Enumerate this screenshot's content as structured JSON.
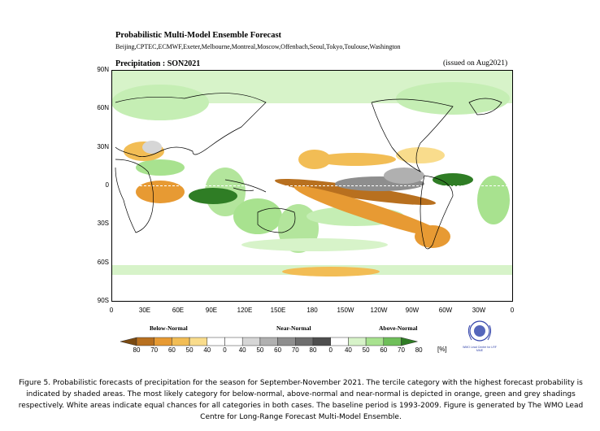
{
  "header": {
    "title": "Probabilistic Multi-Model Ensemble Forecast",
    "centres": "Beijing,CPTEC,ECMWF,Exeter,Melbourne,Montreal,Moscow,Offenbach,Seoul,Tokyo,Toulouse,Washington",
    "variable": "Precipitation : SON2021",
    "issued": "(issued on Aug2021)"
  },
  "map": {
    "lat_labels": [
      "90N",
      "60N",
      "30N",
      "0",
      "30S",
      "60S",
      "90S"
    ],
    "lon_labels": [
      "0",
      "30E",
      "60E",
      "90E",
      "120E",
      "150E",
      "180",
      "150W",
      "120W",
      "90W",
      "60W",
      "30W",
      "0"
    ]
  },
  "legend": {
    "categories": [
      "Below-Normal",
      "Near-Normal",
      "Above-Normal"
    ],
    "tick_labels": [
      "80",
      "70",
      "60",
      "50",
      "40",
      "0",
      "40",
      "50",
      "60",
      "70",
      "80",
      "0",
      "40",
      "50",
      "60",
      "70",
      "80"
    ],
    "unit": "[%]",
    "colors": {
      "below": [
        "#7a4a12",
        "#b8701f",
        "#e79a33",
        "#f2bd55",
        "#f9dc8c"
      ],
      "near": [
        "#ffffff",
        "#ffffff",
        "#d6d6d6",
        "#b0b0b0",
        "#8e8e8e",
        "#6e6e6e",
        "#4e4e4e"
      ],
      "above": [
        "#ffffff",
        "#d7f3c9",
        "#a8e28f",
        "#6fbf5a",
        "#2f7d25",
        "#17501a"
      ]
    },
    "logo_text": "WMO Lead Centre for LRF MME"
  },
  "caption": "Figure 5. Probabilistic forecasts of precipitation for the season for September-November 2021. The tercile category with the highest forecast probability is indicated by shaded areas. The most likely category for below-normal, above-normal and near-normal is depicted in orange, green and grey shadings respectively. White areas indicate equal chances for all categories in both cases. The baseline period is 1993-2009. Figure is generated by The WMO Lead Centre for Long-Range Forecast Multi-Model Ensemble."
}
